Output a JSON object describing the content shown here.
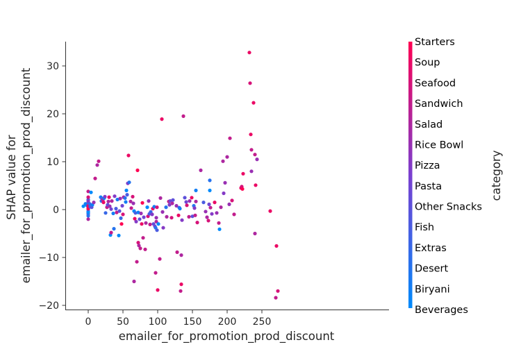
{
  "chart_data": {
    "type": "scatter",
    "title": "",
    "xlabel": "emailer_for_promotion_prod_discount",
    "ylabel": "SHAP value for\nemailer_for_promotion_prod_discount",
    "xlim": [
      -15,
      285
    ],
    "ylim": [
      -21,
      35
    ],
    "xticks": [
      0,
      50,
      100,
      150,
      200,
      250
    ],
    "yticks": [
      -20,
      -10,
      0,
      10,
      20,
      30
    ],
    "grid": false,
    "colorbar": {
      "label": "category",
      "categories": [
        "Beverages",
        "Biryani",
        "Desert",
        "Extras",
        "Fish",
        "Other Snacks",
        "Pasta",
        "Pizza",
        "Rice Bowl",
        "Salad",
        "Sandwich",
        "Seafood",
        "Soup",
        "Starters"
      ],
      "color_low": "#008afb",
      "color_high": "#ff0052"
    },
    "points": [
      [
        -7,
        0.7,
        0
      ],
      [
        -4,
        1.2,
        1
      ],
      [
        -2,
        0.9,
        0
      ],
      [
        0,
        3.8,
        10
      ],
      [
        0,
        2.1,
        2
      ],
      [
        0,
        1.5,
        5
      ],
      [
        0,
        1.0,
        3
      ],
      [
        0,
        0.5,
        8
      ],
      [
        0,
        0.0,
        1
      ],
      [
        0,
        -0.4,
        4
      ],
      [
        0,
        -0.9,
        6
      ],
      [
        0,
        -1.3,
        2
      ],
      [
        0,
        -2.0,
        9
      ],
      [
        0,
        2.6,
        11
      ],
      [
        0,
        0.2,
        13
      ],
      [
        0,
        -0.6,
        0
      ],
      [
        0,
        1.8,
        7
      ],
      [
        0,
        0.8,
        12
      ],
      [
        2,
        1.2,
        3
      ],
      [
        3,
        0.6,
        2
      ],
      [
        4,
        3.6,
        0
      ],
      [
        5,
        0.5,
        5
      ],
      [
        6,
        1.0,
        1
      ],
      [
        8,
        1.5,
        8
      ],
      [
        10,
        6.5,
        10
      ],
      [
        13,
        9.3,
        9
      ],
      [
        15,
        10.1,
        10
      ],
      [
        18,
        2.6,
        1
      ],
      [
        19,
        1.8,
        2
      ],
      [
        20,
        2.3,
        4
      ],
      [
        21,
        2.0,
        9
      ],
      [
        22,
        1.5,
        12
      ],
      [
        23,
        2.4,
        0
      ],
      [
        24,
        2.7,
        7
      ],
      [
        25,
        -0.7,
        3
      ],
      [
        27,
        0.5,
        10
      ],
      [
        28,
        1.0,
        5
      ],
      [
        29,
        1.7,
        9
      ],
      [
        30,
        2.6,
        12
      ],
      [
        31,
        0.7,
        8
      ],
      [
        32,
        -5.3,
        0
      ],
      [
        33,
        -4.8,
        10
      ],
      [
        33,
        0.1,
        6
      ],
      [
        34,
        1.8,
        9
      ],
      [
        36,
        -0.8,
        1
      ],
      [
        37,
        -4.0,
        2
      ],
      [
        38,
        2.8,
        7
      ],
      [
        40,
        0.2,
        4
      ],
      [
        41,
        -0.6,
        10
      ],
      [
        42,
        2.1,
        1
      ],
      [
        44,
        -5.4,
        0
      ],
      [
        45,
        -0.3,
        5
      ],
      [
        46,
        2.3,
        8
      ],
      [
        47,
        -1.8,
        3
      ],
      [
        48,
        -3.0,
        13
      ],
      [
        49,
        0.8,
        6
      ],
      [
        50,
        -1.0,
        11
      ],
      [
        51,
        2.6,
        9
      ],
      [
        53,
        2.4,
        2
      ],
      [
        54,
        1.6,
        1
      ],
      [
        55,
        4.0,
        0
      ],
      [
        56,
        3.1,
        4
      ],
      [
        57,
        5.5,
        7
      ],
      [
        58,
        11.3,
        12
      ],
      [
        59,
        5.7,
        2
      ],
      [
        61,
        1.7,
        9
      ],
      [
        62,
        0.3,
        10
      ],
      [
        64,
        2.7,
        11
      ],
      [
        65,
        1.3,
        8
      ],
      [
        66,
        -0.3,
        0
      ],
      [
        66,
        -15.0,
        9
      ],
      [
        67,
        -1.9,
        12
      ],
      [
        68,
        -0.7,
        4
      ],
      [
        69,
        -2.5,
        7
      ],
      [
        70,
        -10.9,
        10
      ],
      [
        71,
        8.2,
        13
      ],
      [
        72,
        -0.6,
        1
      ],
      [
        72,
        -6.9,
        11
      ],
      [
        73,
        -7.5,
        9
      ],
      [
        74,
        -2.0,
        5
      ],
      [
        75,
        -8.1,
        10
      ],
      [
        76,
        -0.8,
        8
      ],
      [
        77,
        -3.0,
        12
      ],
      [
        78,
        1.4,
        13
      ],
      [
        79,
        -5.9,
        10
      ],
      [
        80,
        -1.6,
        6
      ],
      [
        82,
        -8.3,
        10
      ],
      [
        83,
        -2.8,
        9
      ],
      [
        85,
        0.5,
        0
      ],
      [
        86,
        -1.4,
        11
      ],
      [
        87,
        1.8,
        8
      ],
      [
        88,
        -0.9,
        4
      ],
      [
        89,
        -3.1,
        10
      ],
      [
        90,
        -0.5,
        3
      ],
      [
        92,
        -1.0,
        7
      ],
      [
        93,
        0.2,
        12
      ],
      [
        94,
        -3.0,
        5
      ],
      [
        95,
        0.6,
        1
      ],
      [
        96,
        -3.5,
        6
      ],
      [
        97,
        -3.8,
        2
      ],
      [
        97,
        -13.2,
        10
      ],
      [
        98,
        -1.7,
        8
      ],
      [
        98,
        -2.5,
        9
      ],
      [
        99,
        -4.3,
        4
      ],
      [
        99,
        0.5,
        11
      ],
      [
        100,
        -16.8,
        12
      ],
      [
        101,
        -3.0,
        0
      ],
      [
        103,
        -10.3,
        10
      ],
      [
        104,
        2.4,
        9
      ],
      [
        106,
        18.9,
        12
      ],
      [
        107,
        -0.5,
        8
      ],
      [
        108,
        -3.8,
        7
      ],
      [
        112,
        0.5,
        2
      ],
      [
        113,
        -1.5,
        9
      ],
      [
        116,
        1.7,
        10
      ],
      [
        117,
        1.0,
        7
      ],
      [
        118,
        1.8,
        6
      ],
      [
        120,
        -1.7,
        11
      ],
      [
        121,
        1.3,
        9
      ],
      [
        122,
        2.0,
        5
      ],
      [
        127,
        0.8,
        8
      ],
      [
        128,
        -8.9,
        10
      ],
      [
        130,
        -1.2,
        12
      ],
      [
        131,
        0.4,
        3
      ],
      [
        132,
        0.2,
        1
      ],
      [
        133,
        -17.0,
        10
      ],
      [
        134,
        -15.6,
        12
      ],
      [
        134,
        -9.5,
        9
      ],
      [
        135,
        -2.2,
        7
      ],
      [
        137,
        19.5,
        10
      ],
      [
        139,
        2.5,
        5
      ],
      [
        141,
        1.6,
        6
      ],
      [
        142,
        0.9,
        11
      ],
      [
        145,
        -1.5,
        10
      ],
      [
        146,
        1.8,
        8
      ],
      [
        149,
        2.5,
        12
      ],
      [
        150,
        -1.4,
        5
      ],
      [
        152,
        0.8,
        2
      ],
      [
        153,
        0.3,
        7
      ],
      [
        154,
        -1.2,
        10
      ],
      [
        155,
        4.0,
        1
      ],
      [
        155,
        1.7,
        9
      ],
      [
        157,
        -2.7,
        11
      ],
      [
        162,
        8.2,
        9
      ],
      [
        166,
        1.5,
        4
      ],
      [
        169,
        -0.4,
        8
      ],
      [
        171,
        -1.6,
        9
      ],
      [
        173,
        -2.3,
        11
      ],
      [
        174,
        1.1,
        6
      ],
      [
        175,
        6.1,
        2
      ],
      [
        175,
        4.0,
        0
      ],
      [
        176,
        0.4,
        10
      ],
      [
        178,
        -0.9,
        7
      ],
      [
        182,
        1.5,
        12
      ],
      [
        185,
        -0.7,
        8
      ],
      [
        188,
        -2.8,
        10
      ],
      [
        189,
        -4.1,
        0
      ],
      [
        191,
        0.5,
        9
      ],
      [
        194,
        10.1,
        9
      ],
      [
        195,
        3.4,
        7
      ],
      [
        197,
        5.6,
        8
      ],
      [
        200,
        11.0,
        9
      ],
      [
        203,
        1.1,
        8
      ],
      [
        204,
        14.9,
        10
      ],
      [
        207,
        1.9,
        11
      ],
      [
        210,
        -1.0,
        10
      ],
      [
        220,
        4.5,
        12
      ],
      [
        221,
        4.8,
        11
      ],
      [
        222,
        4.3,
        13
      ],
      [
        223,
        7.5,
        12
      ],
      [
        232,
        32.8,
        12
      ],
      [
        233,
        26.4,
        11
      ],
      [
        234,
        15.7,
        12
      ],
      [
        235,
        8.0,
        8
      ],
      [
        235,
        12.5,
        10
      ],
      [
        238,
        22.3,
        12
      ],
      [
        240,
        -5.0,
        9
      ],
      [
        240,
        11.5,
        10
      ],
      [
        241,
        5.1,
        12
      ],
      [
        243,
        10.5,
        8
      ],
      [
        262,
        -0.3,
        12
      ],
      [
        270,
        -18.4,
        10
      ],
      [
        271,
        -7.6,
        12
      ],
      [
        273,
        -17.0,
        11
      ]
    ]
  }
}
